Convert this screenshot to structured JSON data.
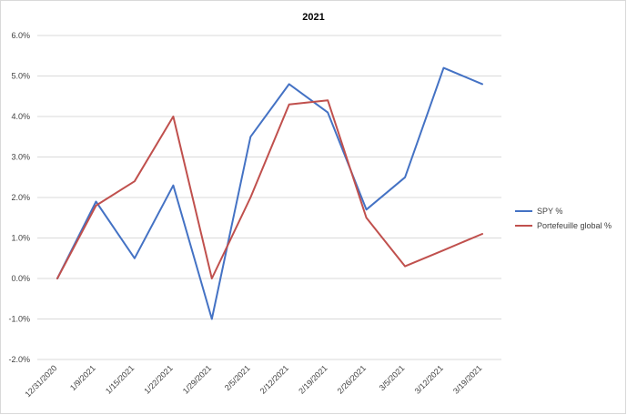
{
  "chart_data": {
    "type": "line",
    "title": "2021",
    "xlabel": "",
    "ylabel": "",
    "categories": [
      "12/31/2020",
      "1/9/2021",
      "1/15/2021",
      "1/22/2021",
      "1/29/2021",
      "2/5/2021",
      "2/12/2021",
      "2/19/2021",
      "2/26/2021",
      "3/5/2021",
      "3/12/2021",
      "3/19/2021"
    ],
    "y_ticks": [
      "-2.0%",
      "-1.0%",
      "0.0%",
      "1.0%",
      "2.0%",
      "3.0%",
      "4.0%",
      "5.0%",
      "6.0%"
    ],
    "ylim": [
      -2.0,
      6.0
    ],
    "grid": true,
    "legend_position": "right",
    "series": [
      {
        "name": "SPY %",
        "color": "#4472C4",
        "values": [
          0.0,
          1.9,
          0.5,
          2.3,
          -1.0,
          3.5,
          4.8,
          4.1,
          1.7,
          2.5,
          5.2,
          4.8
        ]
      },
      {
        "name": "Portefeuille global %",
        "color": "#C0504D",
        "values": [
          0.0,
          1.8,
          2.4,
          4.0,
          0.0,
          2.0,
          4.3,
          4.4,
          1.5,
          0.3,
          0.7,
          1.1
        ]
      }
    ]
  }
}
